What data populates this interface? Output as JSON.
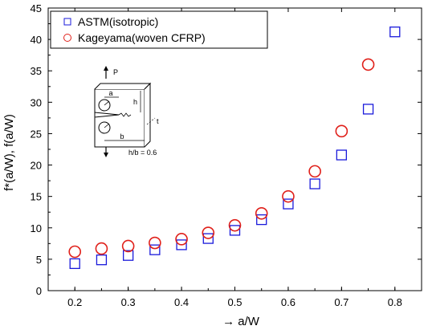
{
  "chart_data": {
    "type": "scatter",
    "xlabel": "→  a/W",
    "ylabel": "f*(a/W), f(a/W)",
    "xlim": [
      0.15,
      0.85
    ],
    "ylim": [
      0,
      45
    ],
    "xticks": [
      0.2,
      0.3,
      0.4,
      0.5,
      0.6,
      0.7,
      0.8
    ],
    "yticks": [
      0,
      5,
      10,
      15,
      20,
      25,
      30,
      35,
      40,
      45
    ],
    "grid": false,
    "legend_position": "top-left",
    "series": [
      {
        "name": "ASTM(isotropic)",
        "marker": "square",
        "color": "#1a1adb",
        "x": [
          0.2,
          0.25,
          0.3,
          0.35,
          0.4,
          0.45,
          0.5,
          0.55,
          0.6,
          0.65,
          0.7,
          0.75,
          0.8
        ],
        "y": [
          4.3,
          4.9,
          5.6,
          6.5,
          7.3,
          8.3,
          9.6,
          11.3,
          13.8,
          17.0,
          21.6,
          28.9,
          41.2
        ]
      },
      {
        "name": "Kageyama(woven CFRP)",
        "marker": "circle",
        "color": "#e0201a",
        "x": [
          0.2,
          0.25,
          0.3,
          0.35,
          0.4,
          0.45,
          0.5,
          0.55,
          0.6,
          0.65,
          0.7,
          0.75
        ],
        "y": [
          6.2,
          6.7,
          7.1,
          7.6,
          8.2,
          9.2,
          10.4,
          12.3,
          15.0,
          19.0,
          25.4,
          36.0
        ]
      }
    ],
    "inset": {
      "load_label": "P",
      "dim_a": "a",
      "dim_h": "h",
      "dim_b": "b",
      "dim_t": "t",
      "ratio_label": "h/b = 0.6"
    }
  }
}
